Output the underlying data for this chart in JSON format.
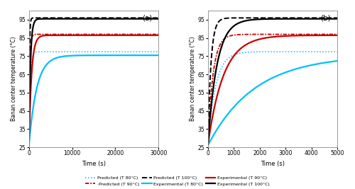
{
  "title_a": "(a)",
  "title_b": "(b)",
  "ylabel": "Banan center temperature (°C)",
  "xlabel": "Time (s)",
  "ylim": [
    25,
    100
  ],
  "yticks": [
    25,
    35,
    45,
    55,
    65,
    75,
    85,
    95
  ],
  "xlim_a": [
    0,
    30000
  ],
  "xticks_a": [
    0,
    10000,
    20000,
    30000
  ],
  "xlim_b": [
    0,
    5000
  ],
  "xticks_b": [
    0,
    1000,
    2000,
    3000,
    4000,
    5000
  ],
  "T_init": 26,
  "T80_pred_final": 77.5,
  "T80_exp_final": 75.5,
  "T90_pred_final": 87.0,
  "T90_exp_final": 86.5,
  "T100_pred_final": 96.0,
  "T100_exp_final": 95.5,
  "tau80_pred": 300,
  "tau80_exp": 1800,
  "tau90_pred": 200,
  "tau90_exp": 600,
  "tau100_pred": 120,
  "tau100_exp": 350,
  "color_80": "#00BFFF",
  "color_90": "#CC0000",
  "color_100": "#000000",
  "background": "#FFFFFF",
  "lw_pred": 1.1,
  "lw_exp": 1.6
}
